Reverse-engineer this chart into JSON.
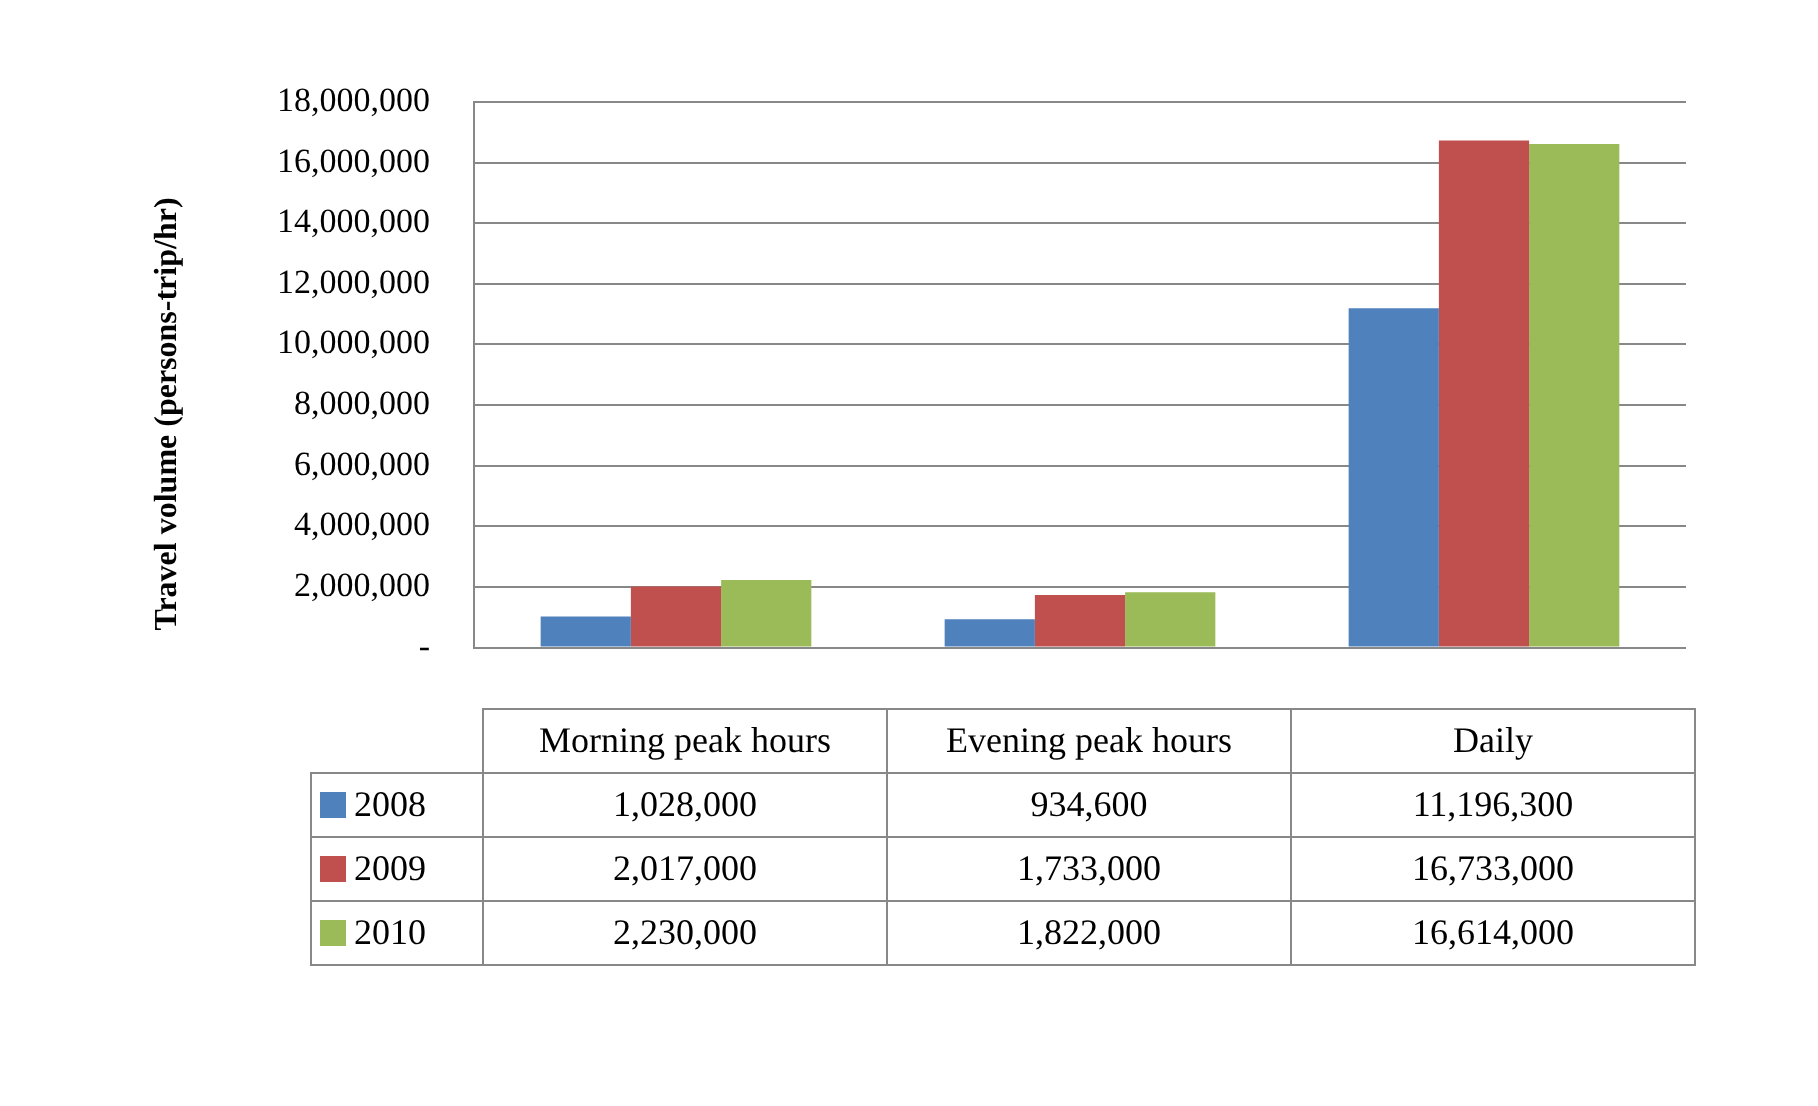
{
  "chart_data": {
    "type": "bar",
    "ylabel": "Travel volume (persons-trip/hr)",
    "categories": [
      "Morning peak hours",
      "Evening peak hours",
      "Daily"
    ],
    "series": [
      {
        "name": "2008",
        "color": "#4f81bd",
        "values": [
          1028000,
          934600,
          11196300
        ],
        "value_labels": [
          "1,028,000",
          "934,600",
          "11,196,300"
        ]
      },
      {
        "name": "2009",
        "color": "#c0504d",
        "values": [
          2017000,
          1733000,
          16733000
        ],
        "value_labels": [
          "2,017,000",
          "1,733,000",
          "16,733,000"
        ]
      },
      {
        "name": "2010",
        "color": "#9bbb59",
        "values": [
          2230000,
          1822000,
          16614000
        ],
        "value_labels": [
          "2,230,000",
          "1,822,000",
          "16,614,000"
        ]
      }
    ],
    "ylim": [
      0,
      18000000
    ],
    "yticks": [
      {
        "value": 0,
        "label": "-"
      },
      {
        "value": 2000000,
        "label": "2,000,000"
      },
      {
        "value": 4000000,
        "label": "4,000,000"
      },
      {
        "value": 6000000,
        "label": "6,000,000"
      },
      {
        "value": 8000000,
        "label": "8,000,000"
      },
      {
        "value": 10000000,
        "label": "10,000,000"
      },
      {
        "value": 12000000,
        "label": "12,000,000"
      },
      {
        "value": 14000000,
        "label": "14,000,000"
      },
      {
        "value": 16000000,
        "label": "16,000,000"
      },
      {
        "value": 18000000,
        "label": "18,000,000"
      }
    ],
    "grid": "y",
    "legend": "bottom"
  }
}
